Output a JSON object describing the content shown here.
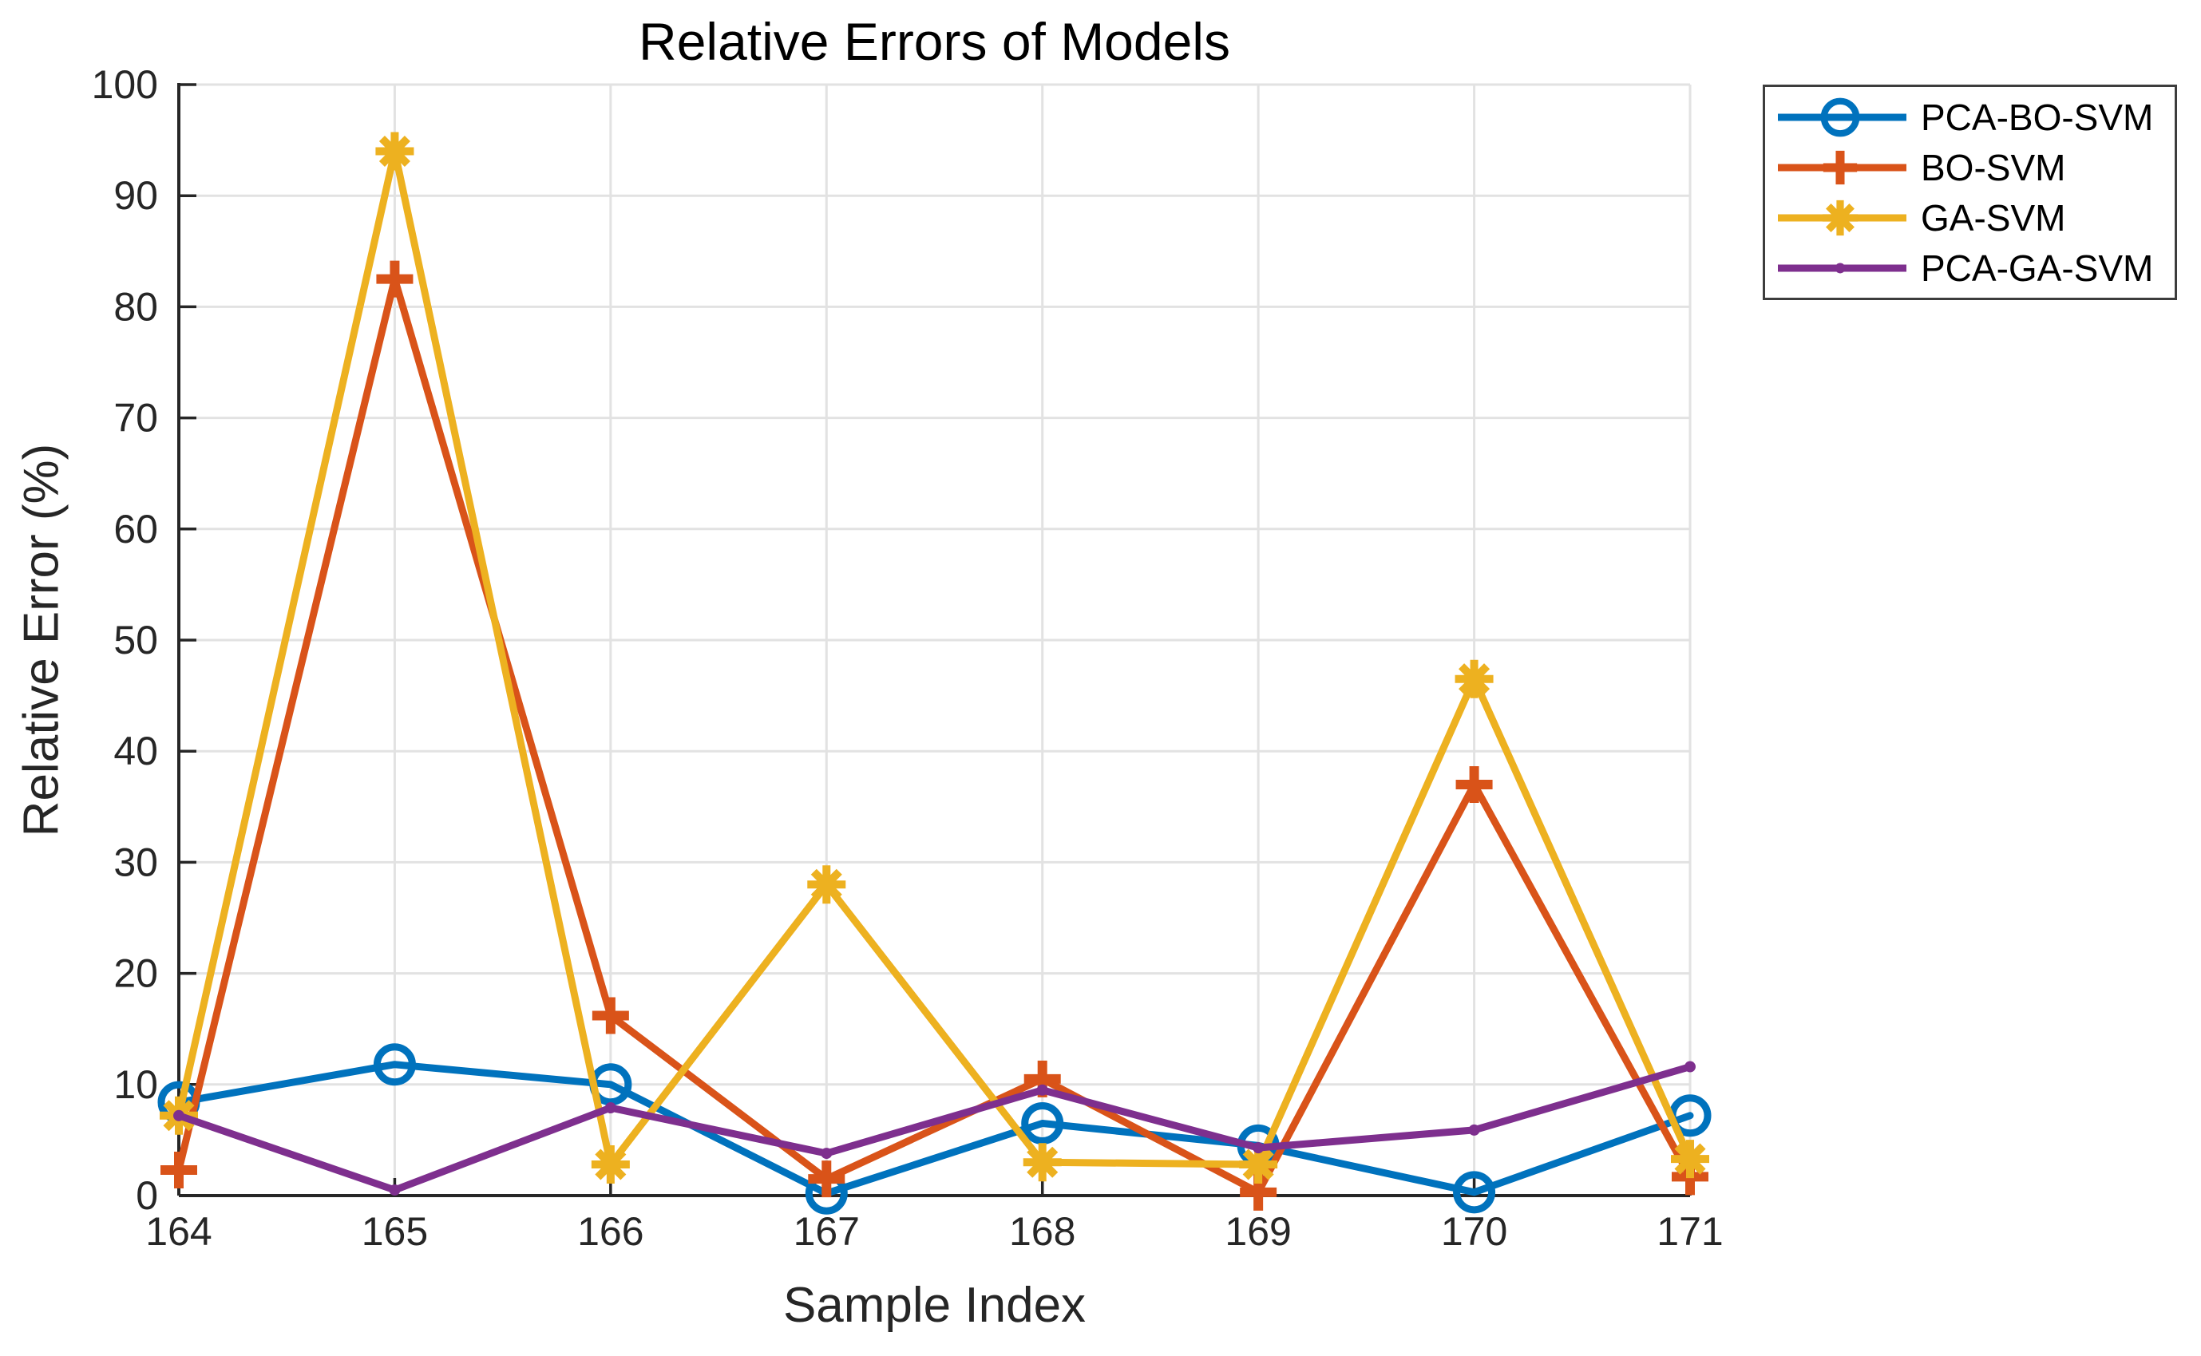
{
  "figure": {
    "title": "Relative Errors of Models",
    "xlabel": "Sample Index",
    "ylabel": "Relative Error (%)"
  },
  "chart_data": {
    "type": "line",
    "title": "Relative Errors of Models",
    "xlabel": "Sample Index",
    "ylabel": "Relative Error (%)",
    "x": [
      164,
      165,
      166,
      167,
      168,
      169,
      170,
      171
    ],
    "x_tick_labels": [
      "164",
      "165",
      "166",
      "167",
      "168",
      "169",
      "170",
      "171"
    ],
    "y_ticks": [
      0,
      10,
      20,
      30,
      40,
      50,
      60,
      70,
      80,
      90,
      100
    ],
    "xlim": [
      164,
      171
    ],
    "ylim": [
      0,
      100
    ],
    "grid": true,
    "legend_position": "outside-top-right",
    "axis_color": "#262626",
    "grid_color": "#e2e2e2",
    "legend_border_color": "#3d3d3d",
    "series": [
      {
        "name": "PCA-BO-SVM",
        "color": "#0072BD",
        "marker": "circle",
        "values": [
          8.4,
          11.8,
          10.0,
          0.2,
          6.5,
          4.5,
          0.3,
          7.2
        ]
      },
      {
        "name": "BO-SVM",
        "color": "#D95319",
        "marker": "plus",
        "values": [
          2.3,
          82.5,
          16.2,
          1.5,
          10.5,
          0.3,
          37.0,
          1.7
        ]
      },
      {
        "name": "GA-SVM",
        "color": "#EDB120",
        "marker": "asterisk",
        "values": [
          7.2,
          94.0,
          2.8,
          28.0,
          3.0,
          2.8,
          46.5,
          3.3
        ]
      },
      {
        "name": "PCA-GA-SVM",
        "color": "#7E2F8E",
        "marker": "dot",
        "values": [
          7.2,
          0.5,
          7.9,
          3.8,
          9.5,
          4.3,
          5.9,
          11.6
        ]
      }
    ]
  }
}
